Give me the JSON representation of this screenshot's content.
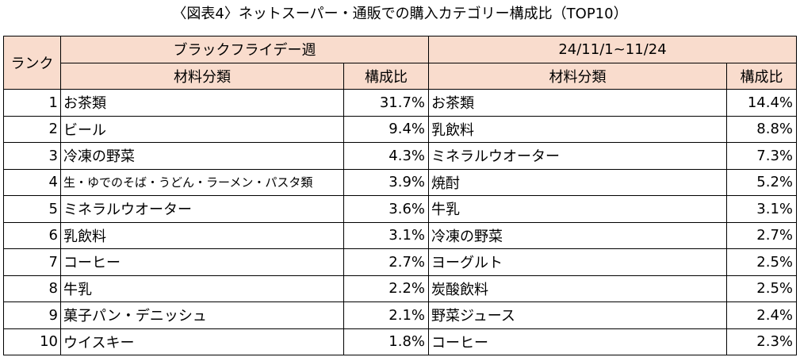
{
  "title": "〈図表4〉ネットスーパー・通販での購入カテゴリー構成比（TOP10）",
  "headers": {
    "rank": "ランク",
    "period_a": "ブラックフライデー週",
    "period_b": "24/11/1~11/24",
    "category": "材料分類",
    "share": "構成比"
  },
  "rows": [
    {
      "rank": "1",
      "a_name": "お茶類",
      "a_pct": "31.7%",
      "b_name": "お茶類",
      "b_pct": "14.4%"
    },
    {
      "rank": "2",
      "a_name": "ビール",
      "a_pct": "9.4%",
      "b_name": "乳飲料",
      "b_pct": "8.8%"
    },
    {
      "rank": "3",
      "a_name": "冷凍の野菜",
      "a_pct": "4.3%",
      "b_name": "ミネラルウオーター",
      "b_pct": "7.3%"
    },
    {
      "rank": "4",
      "a_name": "生・ゆでのそば・うどん・ラーメン・パスタ類",
      "a_pct": "3.9%",
      "b_name": "焼酎",
      "b_pct": "5.2%"
    },
    {
      "rank": "5",
      "a_name": "ミネラルウオーター",
      "a_pct": "3.6%",
      "b_name": "牛乳",
      "b_pct": "3.1%"
    },
    {
      "rank": "6",
      "a_name": "乳飲料",
      "a_pct": "3.1%",
      "b_name": "冷凍の野菜",
      "b_pct": "2.7%"
    },
    {
      "rank": "7",
      "a_name": "コーヒー",
      "a_pct": "2.7%",
      "b_name": "ヨーグルト",
      "b_pct": "2.5%"
    },
    {
      "rank": "8",
      "a_name": "牛乳",
      "a_pct": "2.2%",
      "b_name": "炭酸飲料",
      "b_pct": "2.5%"
    },
    {
      "rank": "9",
      "a_name": "菓子パン・デニッシュ",
      "a_pct": "2.1%",
      "b_name": "野菜ジュース",
      "b_pct": "2.4%"
    },
    {
      "rank": "10",
      "a_name": "ウイスキー",
      "a_pct": "1.8%",
      "b_name": "コーヒー",
      "b_pct": "2.3%"
    }
  ]
}
